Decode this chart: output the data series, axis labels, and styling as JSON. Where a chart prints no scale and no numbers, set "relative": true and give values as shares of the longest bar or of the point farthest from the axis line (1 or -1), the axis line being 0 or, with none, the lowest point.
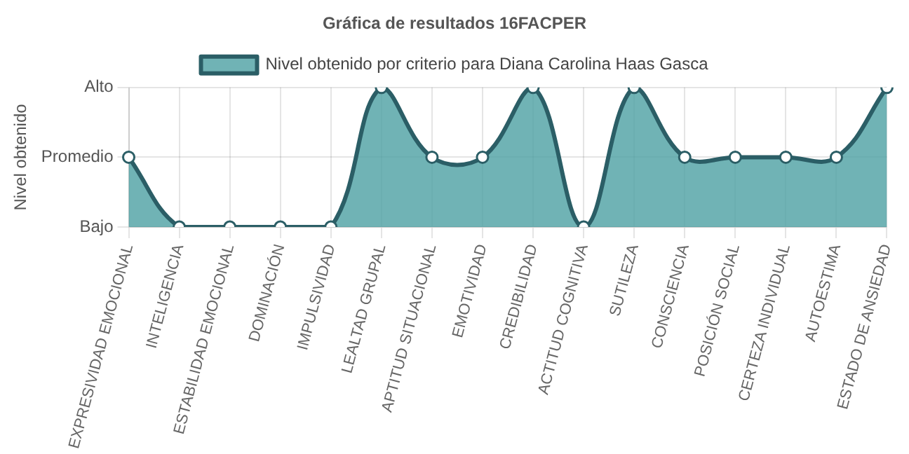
{
  "chart_data": {
    "type": "area",
    "title": "Gráfica de resultados 16FACPER",
    "ylabel": "Nivel obtenido",
    "categories": [
      "EXPRESIVIDAD EMOCIONAL",
      "INTELIGENCIA",
      "ESTABILIDAD EMOCIONAL",
      "DOMINACIÓN",
      "IMPULSIVIDAD",
      "LEALTAD GRUPAL",
      "APTITUD SITUACIONAL",
      "EMOTIVIDAD",
      "CREDIBILIDAD",
      "ACTITUD COGNITIVA",
      "SUTILEZA",
      "CONSCIENCIA",
      "POSICIÓN SOCIAL",
      "CERTEZA INDIVIDUAL",
      "AUTOESTIMA",
      "ESTADO DE ANSIEDAD"
    ],
    "series": [
      {
        "name": "Nivel obtenido por criterio para Diana Carolina Haas Gasca",
        "color": "#2b5e66",
        "values": [
          0.5,
          0,
          0,
          0,
          0,
          1,
          0.5,
          0.5,
          1,
          0,
          1,
          0.5,
          0.5,
          0.5,
          0.5,
          1
        ]
      }
    ],
    "relative": true,
    "y_categories": [
      "Alto",
      "Promedio",
      "Bajo"
    ],
    "grid": true,
    "legend": "top",
    "marker": "circle",
    "line_style": "solid"
  }
}
